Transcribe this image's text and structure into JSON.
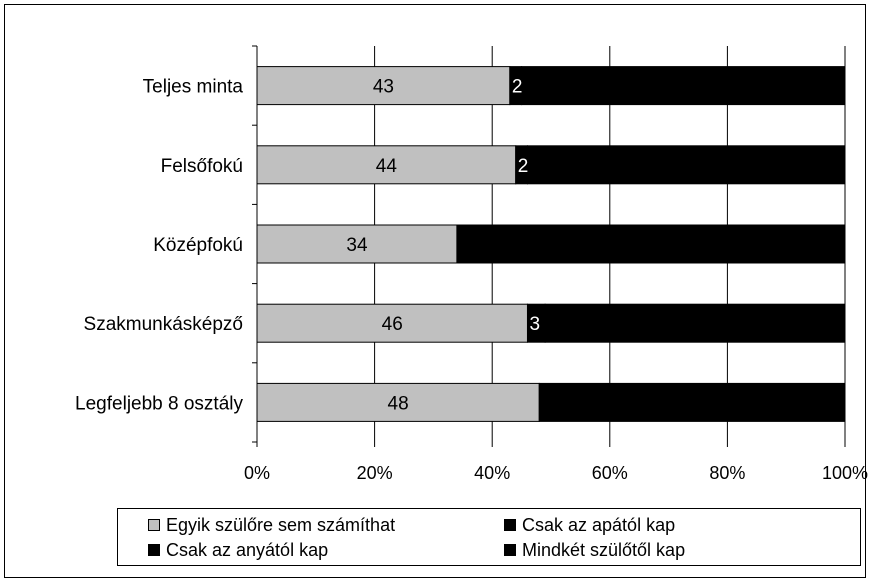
{
  "chart_data": {
    "type": "bar",
    "orientation": "horizontal",
    "stacked": "percent",
    "categories": [
      "Teljes minta",
      "Felsőfokú",
      "Középfokú",
      "Szakmunkásképző",
      "Legfeljebb 8 osztály"
    ],
    "series": [
      {
        "name": "Egyik szülőre sem számíthat",
        "color": "#c0c0c0",
        "values": [
          43,
          44,
          34,
          46,
          48
        ],
        "labels": [
          "43",
          "44",
          "34",
          "46",
          "48"
        ]
      },
      {
        "name": "Csak az apától kap",
        "color": "#000000",
        "values": [
          2,
          2,
          0,
          3,
          0
        ],
        "labels": [
          "2",
          "2",
          "",
          "3",
          ""
        ]
      },
      {
        "name": "Csak az anyától kap",
        "color": "#000000",
        "values": [
          0,
          0,
          0,
          0,
          0
        ],
        "labels": [
          "",
          "",
          "",
          "",
          ""
        ]
      },
      {
        "name": "Mindkét szülőtől kap",
        "color": "#000000",
        "values": [
          55,
          54,
          66,
          51,
          52
        ],
        "labels": [
          "",
          "",
          "",
          "",
          ""
        ]
      }
    ],
    "xlim": [
      0,
      100
    ],
    "xticks": [
      "0%",
      "20%",
      "40%",
      "60%",
      "80%",
      "100%"
    ],
    "grid": true,
    "legend_position": "bottom"
  }
}
